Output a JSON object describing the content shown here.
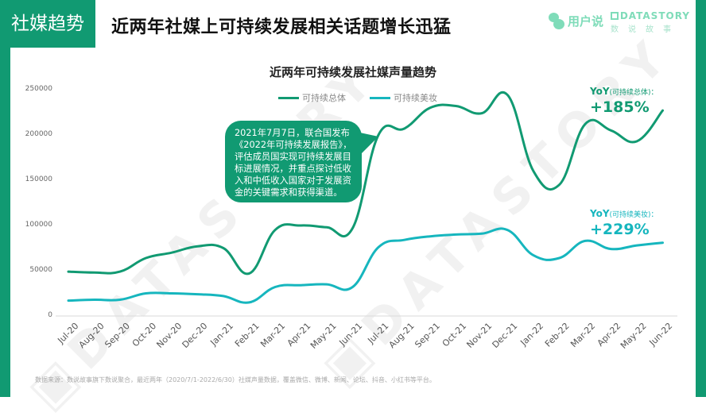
{
  "header": {
    "section_tag": "社媒趋势",
    "title": "近两年社媒上可持续发展相关话题增长迅猛"
  },
  "logos": {
    "user_say": "用户说",
    "datastory": "DATASTORY",
    "datastory_sub": "数说故事"
  },
  "colors": {
    "brand_green": "#119a72",
    "series_total": "#119a72",
    "series_beauty": "#16b6be",
    "logo_light": "#7fdcb9"
  },
  "annotation": {
    "text": "2021年7月7日，联合国发布《2022年可持续发展报告》，评估成员国实现可持续发展目标进展情况，并重点探讨低收入和中低收入国家对于发展资金的关键需求和获得渠道。"
  },
  "yoy": {
    "total_label": "YoY",
    "total_sub": "(可持续总体)：",
    "total_value": "+185%",
    "beauty_label": "YoY",
    "beauty_sub": "(可持续美妆)：",
    "beauty_value": "+229%"
  },
  "footnote": "数据来源：数说故事旗下数说聚合，最近两年（2020/7/1-2022/6/30）社媒声量数据，覆盖微信、微博、新闻、论坛、抖音、小红书等平台。",
  "chart_data": {
    "type": "line",
    "title": "近两年可持续发展社媒声量趋势",
    "xlabel": "",
    "ylabel": "",
    "ylim": [
      0,
      250000
    ],
    "yticks": [
      "250000",
      "200000",
      "150000",
      "100000",
      "50000",
      "0"
    ],
    "grid": false,
    "legend_position": "top",
    "categories": [
      "Jul-20",
      "Aug-20",
      "Sep-20",
      "Oct-20",
      "Nov-20",
      "Dec-20",
      "Jan-21",
      "Feb-21",
      "Mar-21",
      "Apr-21",
      "May-21",
      "Jun-21",
      "Jul-21",
      "Aug-21",
      "Sep-21",
      "Oct-21",
      "Nov-21",
      "Dec-21",
      "Jan-22",
      "Feb-22",
      "Mar-22",
      "Apr-22",
      "May-22",
      "Jun-22"
    ],
    "series": [
      {
        "name": "可持续总体",
        "color": "#119a72",
        "values": [
          49000,
          48000,
          49000,
          64000,
          70000,
          77000,
          75000,
          47000,
          95000,
          100000,
          98000,
          97000,
          200000,
          207000,
          230000,
          232000,
          224000,
          244000,
          160000,
          145000,
          212000,
          205000,
          193000,
          227000
        ]
      },
      {
        "name": "可持续美妆",
        "color": "#16b6be",
        "values": [
          17000,
          18000,
          18000,
          25000,
          25000,
          24000,
          22000,
          15000,
          32000,
          34000,
          35000,
          32000,
          76000,
          84000,
          88000,
          90000,
          91000,
          95000,
          67000,
          64000,
          83000,
          74000,
          78000,
          81000
        ]
      }
    ],
    "annotations": [
      {
        "target": "Jul-21",
        "text_ref": "annotation.text"
      },
      {
        "text": "YoY(可持续总体)：+185%"
      },
      {
        "text": "YoY(可持续美妆)：+229%"
      }
    ]
  }
}
